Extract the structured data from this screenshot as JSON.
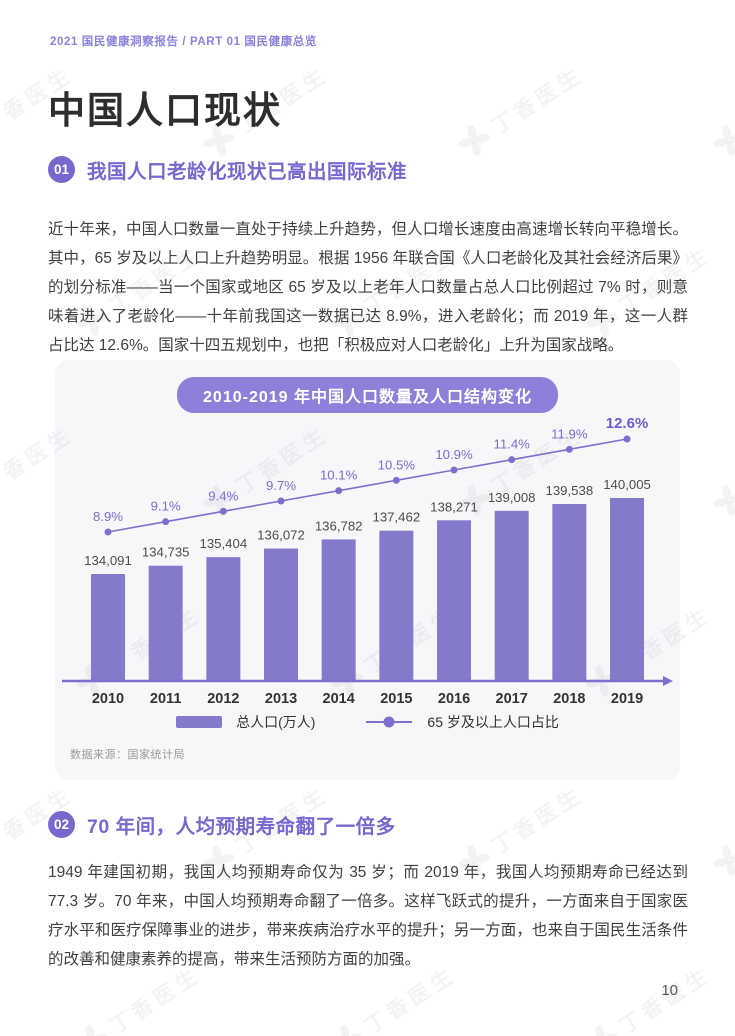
{
  "page": {
    "breadcrumb": "2021 国民健康洞察报告 / PART 01 国民健康总览",
    "title": "中国人口现状",
    "page_number": "10",
    "watermark": "丁香医生"
  },
  "colors": {
    "accent_purple": "#7668ce",
    "bar_purple": "#837acc",
    "line_purple": "#7c70cc",
    "pill_purple": "#8c80d8",
    "card_background": "#f7f7fa",
    "title_text": "#2d2d2d",
    "body_text": "#3f3f3f",
    "muted_text": "#9a9a9a"
  },
  "sections": [
    {
      "badge": "01",
      "heading": "我国人口老龄化现状已高出国际标准",
      "body": "近十年来，中国人口数量一直处于持续上升趋势，但人口增长速度由高速增长转向平稳增长。其中，65 岁及以上人口上升趋势明显。根据 1956 年联合国《人口老龄化及其社会经济后果》的划分标准——当一个国家或地区 65 岁及以上老年人口数量占总人口比例超过 7% 时，则意味着进入了老龄化——十年前我国这一数据已达 8.9%，进入老龄化；而 2019 年，这一人群占比达 12.6%。国家十四五规划中，也把「积极应对人口老龄化」上升为国家战略。"
    },
    {
      "badge": "02",
      "heading": "70 年间，人均预期寿命翻了一倍多",
      "body": "1949 年建国初期，我国人均预期寿命仅为 35 岁；而 2019 年，我国人均预期寿命已经达到 77.3 岁。70 年来，中国人均预期寿命翻了一倍多。这样飞跃式的提升，一方面来自于国家医疗水平和医疗保障事业的进步，带来疾病治疗水平的提升；另一方面，也来自于国民生活条件的改善和健康素养的提高，带来生活预防方面的加强。"
    }
  ],
  "chart_data": {
    "type": "bar",
    "title": "2010-2019 年中国人口数量及人口结构变化",
    "categories": [
      "2010",
      "2011",
      "2012",
      "2013",
      "2014",
      "2015",
      "2016",
      "2017",
      "2018",
      "2019"
    ],
    "series": [
      {
        "name": "总人口(万人)",
        "type": "bar",
        "values": [
          134091,
          134735,
          135404,
          136072,
          136782,
          137462,
          138271,
          139008,
          139538,
          140005
        ]
      },
      {
        "name": "65 岁及以上人口占比",
        "type": "line",
        "unit": "%",
        "values": [
          8.9,
          9.1,
          9.4,
          9.7,
          10.1,
          10.5,
          10.9,
          11.4,
          11.9,
          12.6
        ]
      }
    ],
    "source": "数据来源：国家统计局",
    "legend_position": "bottom",
    "grid": false,
    "value_labels": true
  }
}
